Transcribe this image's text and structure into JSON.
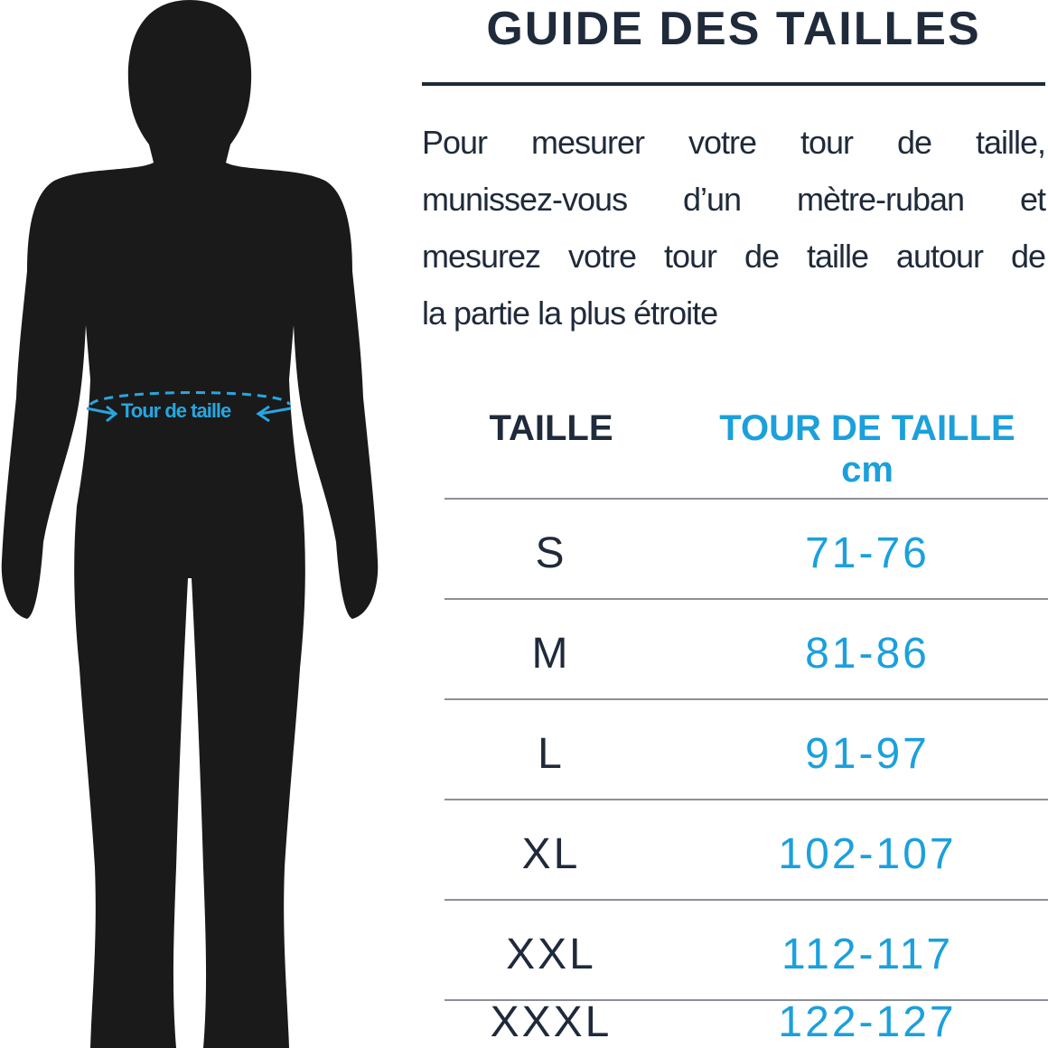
{
  "title": "GUIDE DES TAILLES",
  "instructions": [
    "Pour mesurer votre tour de taille,",
    "munissez-vous d’un mètre-ruban et",
    "mesurez votre tour de taille autour de",
    "la partie la plus étroite"
  ],
  "figure": {
    "waist_label": "Tour de taille"
  },
  "table": {
    "headers": {
      "size": "TAILLE",
      "waist": "TOUR DE TAILLE",
      "unit": "cm"
    },
    "rows": [
      {
        "size": "S",
        "waist": "71-76"
      },
      {
        "size": "M",
        "waist": "81-86"
      },
      {
        "size": "L",
        "waist": "91-97"
      },
      {
        "size": "XL",
        "waist": "102-107"
      },
      {
        "size": "XXL",
        "waist": "112-117"
      },
      {
        "size": "XXXL",
        "waist": "122-127"
      }
    ]
  },
  "colors": {
    "dark": "#1f2a3a",
    "accent": "#1ba0dc",
    "silhouette": "#1a1a1a"
  }
}
